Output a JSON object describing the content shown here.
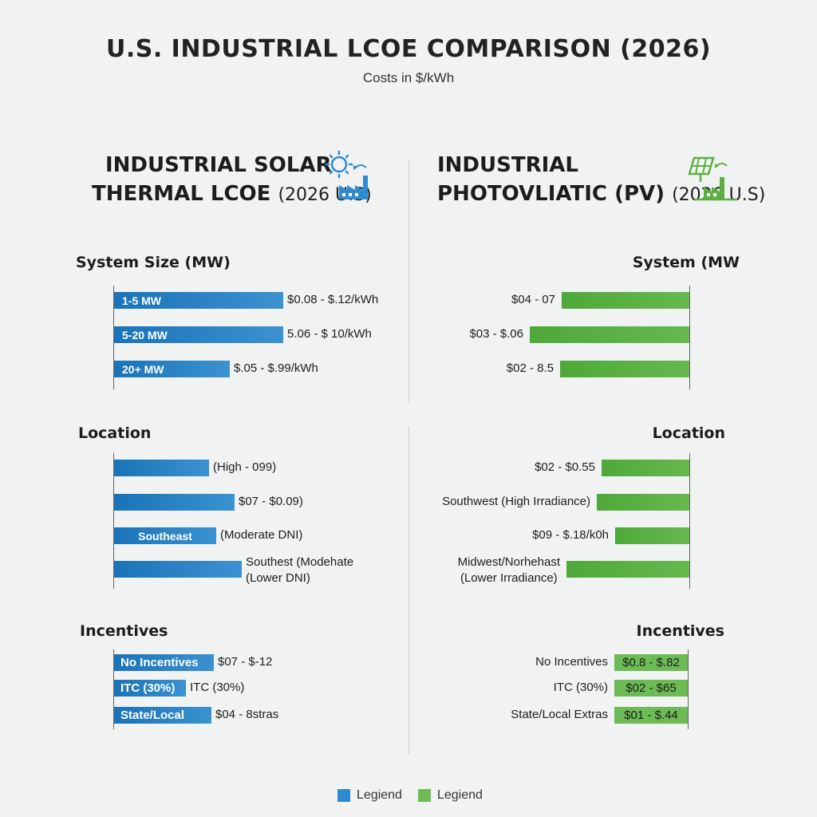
{
  "title": "U.S. INDUSTRIAL LCOE COMPARISON (2026)",
  "subtitle": "Costs in $/kWh",
  "colors": {
    "thermal": "#1a73b8",
    "pv": "#5cb043",
    "background": "#f1f3f3"
  },
  "left_panel": {
    "title_line1": "INDUSTRIAL SOLAR",
    "title_line2_bold": "THERMAL LCOE",
    "title_line2_thin": "(2026 U.S)",
    "icon": "sun-factory-icon",
    "system_size": {
      "label": "System Size (MW)",
      "rows": [
        {
          "bar_label": "1-5 MW",
          "value_text": "$0.08 - $.12/kWh",
          "level": 0.73
        },
        {
          "bar_label": "5-20 MW",
          "value_text": "5.06 - $ 10/kWh",
          "level": 0.73
        },
        {
          "bar_label": "20+ MW",
          "value_text": "$.05 - $.99/kWh",
          "level": 0.5
        }
      ]
    },
    "location": {
      "label": "Location",
      "rows": [
        {
          "bar_label": "",
          "value_text": "(High - 099)",
          "level": 0.41
        },
        {
          "bar_label": "",
          "value_text": "$07 - $0.09)",
          "level": 0.52
        },
        {
          "bar_label": "Southeast",
          "value_text": "(Moderate DNI)",
          "level": 0.44
        },
        {
          "bar_label": "",
          "value_text": "Southest (Modehate\n(Lower DNI)",
          "level": 0.55
        }
      ]
    },
    "incentives": {
      "label": "Incentives",
      "rows": [
        {
          "bar_label": "No Incentives",
          "value_text": "$07 - $-12",
          "level": 0.43
        },
        {
          "bar_label": "ITC (30%)",
          "value_text": "ITC (30%)",
          "level": 0.31
        },
        {
          "bar_label": "State/Local",
          "value_text": "$04 - 8stras",
          "level": 0.42
        }
      ]
    }
  },
  "right_panel": {
    "title_line1": "INDUSTRIAL",
    "title_line2_bold": "PHOTOVLIATIC (PV)",
    "title_line2_thin": "(2026 U.S)",
    "icon": "solar-panel-factory-icon",
    "system_size": {
      "label": "System (MW",
      "rows": [
        {
          "bar_label": "",
          "value_text": "$04 - 07",
          "level": 0.55
        },
        {
          "bar_label": "",
          "value_text": "$03 - $.06",
          "level": 0.69
        },
        {
          "bar_label": "",
          "value_text": "$02 - 8.5",
          "level": 0.56
        }
      ]
    },
    "location": {
      "label": "Location",
      "rows": [
        {
          "bar_label": "",
          "value_text": "$02 - $0.55",
          "level": 0.38
        },
        {
          "bar_label": "",
          "value_text": "Southwest (High Irradiance)",
          "level": 0.4
        },
        {
          "bar_label": "",
          "value_text": "$09 - $.18/k0h",
          "level": 0.32
        },
        {
          "bar_label": "",
          "value_text": "Midwest/Norhehast\n(Lower Irradiance)",
          "level": 0.53
        }
      ]
    },
    "incentives": {
      "label": "Incentives",
      "rows": [
        {
          "bar_label": "No Incentives",
          "value_text": "$0.8 - $.82",
          "level": 0.32
        },
        {
          "bar_label": "ITC (30%)",
          "value_text": "$02 - $65",
          "level": 0.32
        },
        {
          "bar_label": "State/Local Extras",
          "value_text": "$01 - $.44",
          "level": 0.3
        }
      ]
    }
  },
  "legend": [
    {
      "label": "Legiend",
      "color": "#2e8bd0"
    },
    {
      "label": "Legiend",
      "color": "#6cbb55"
    }
  ],
  "chart_data": {
    "type": "bar",
    "title": "U.S. INDUSTRIAL LCOE COMPARISON (2026)",
    "subtitle": "Costs in $/kWh",
    "orientation": "horizontal",
    "series": [
      {
        "name": "INDUSTRIAL SOLAR THERMAL LCOE (2026 U.S)",
        "groups": [
          {
            "name": "System Size (MW)",
            "categories": [
              "1-5 MW",
              "5-20 MW",
              "20+ MW"
            ],
            "labels": [
              "$0.08 - $.12/kWh",
              "5.06 - $ 10/kWh",
              "$.05 - $.99/kWh"
            ]
          },
          {
            "name": "Location",
            "categories": [
              "",
              "",
              "Southeast",
              ""
            ],
            "labels": [
              "(High - 099)",
              "$07 - $0.09)",
              "(Moderate DNI)",
              "Southest (Modehate (Lower DNI)"
            ]
          },
          {
            "name": "Incentives",
            "categories": [
              "No Incentives",
              "ITC (30%)",
              "State/Local"
            ],
            "labels": [
              "$07 - $-12",
              "ITC (30%)",
              "$04 - 8stras"
            ]
          }
        ]
      },
      {
        "name": "INDUSTRIAL PHOTOVLIATIC (PV) (2026 U.S)",
        "groups": [
          {
            "name": "System (MW",
            "categories": [
              "",
              "",
              ""
            ],
            "labels": [
              "$04 - 07",
              "$03 - $.06",
              "$02 - 8.5"
            ]
          },
          {
            "name": "Location",
            "categories": [
              "",
              "Southwest (High Irradiance)",
              "",
              "Midwest/Norhehast (Lower Irradiance)"
            ],
            "labels": [
              "$02 - $0.55",
              "Southwest (High Irradiance)",
              "$09 - $.18/k0h",
              "Midwest/Norhehast (Lower Irradiance)"
            ]
          },
          {
            "name": "Incentives",
            "categories": [
              "No Incentives",
              "ITC (30%)",
              "State/Local Extras"
            ],
            "labels": [
              "$0.8 - $.82",
              "$02 - $65",
              "$01 - $.44"
            ]
          }
        ]
      }
    ],
    "legend": [
      "Legiend",
      "Legiend"
    ],
    "legend_position": "bottom",
    "grid": false
  }
}
